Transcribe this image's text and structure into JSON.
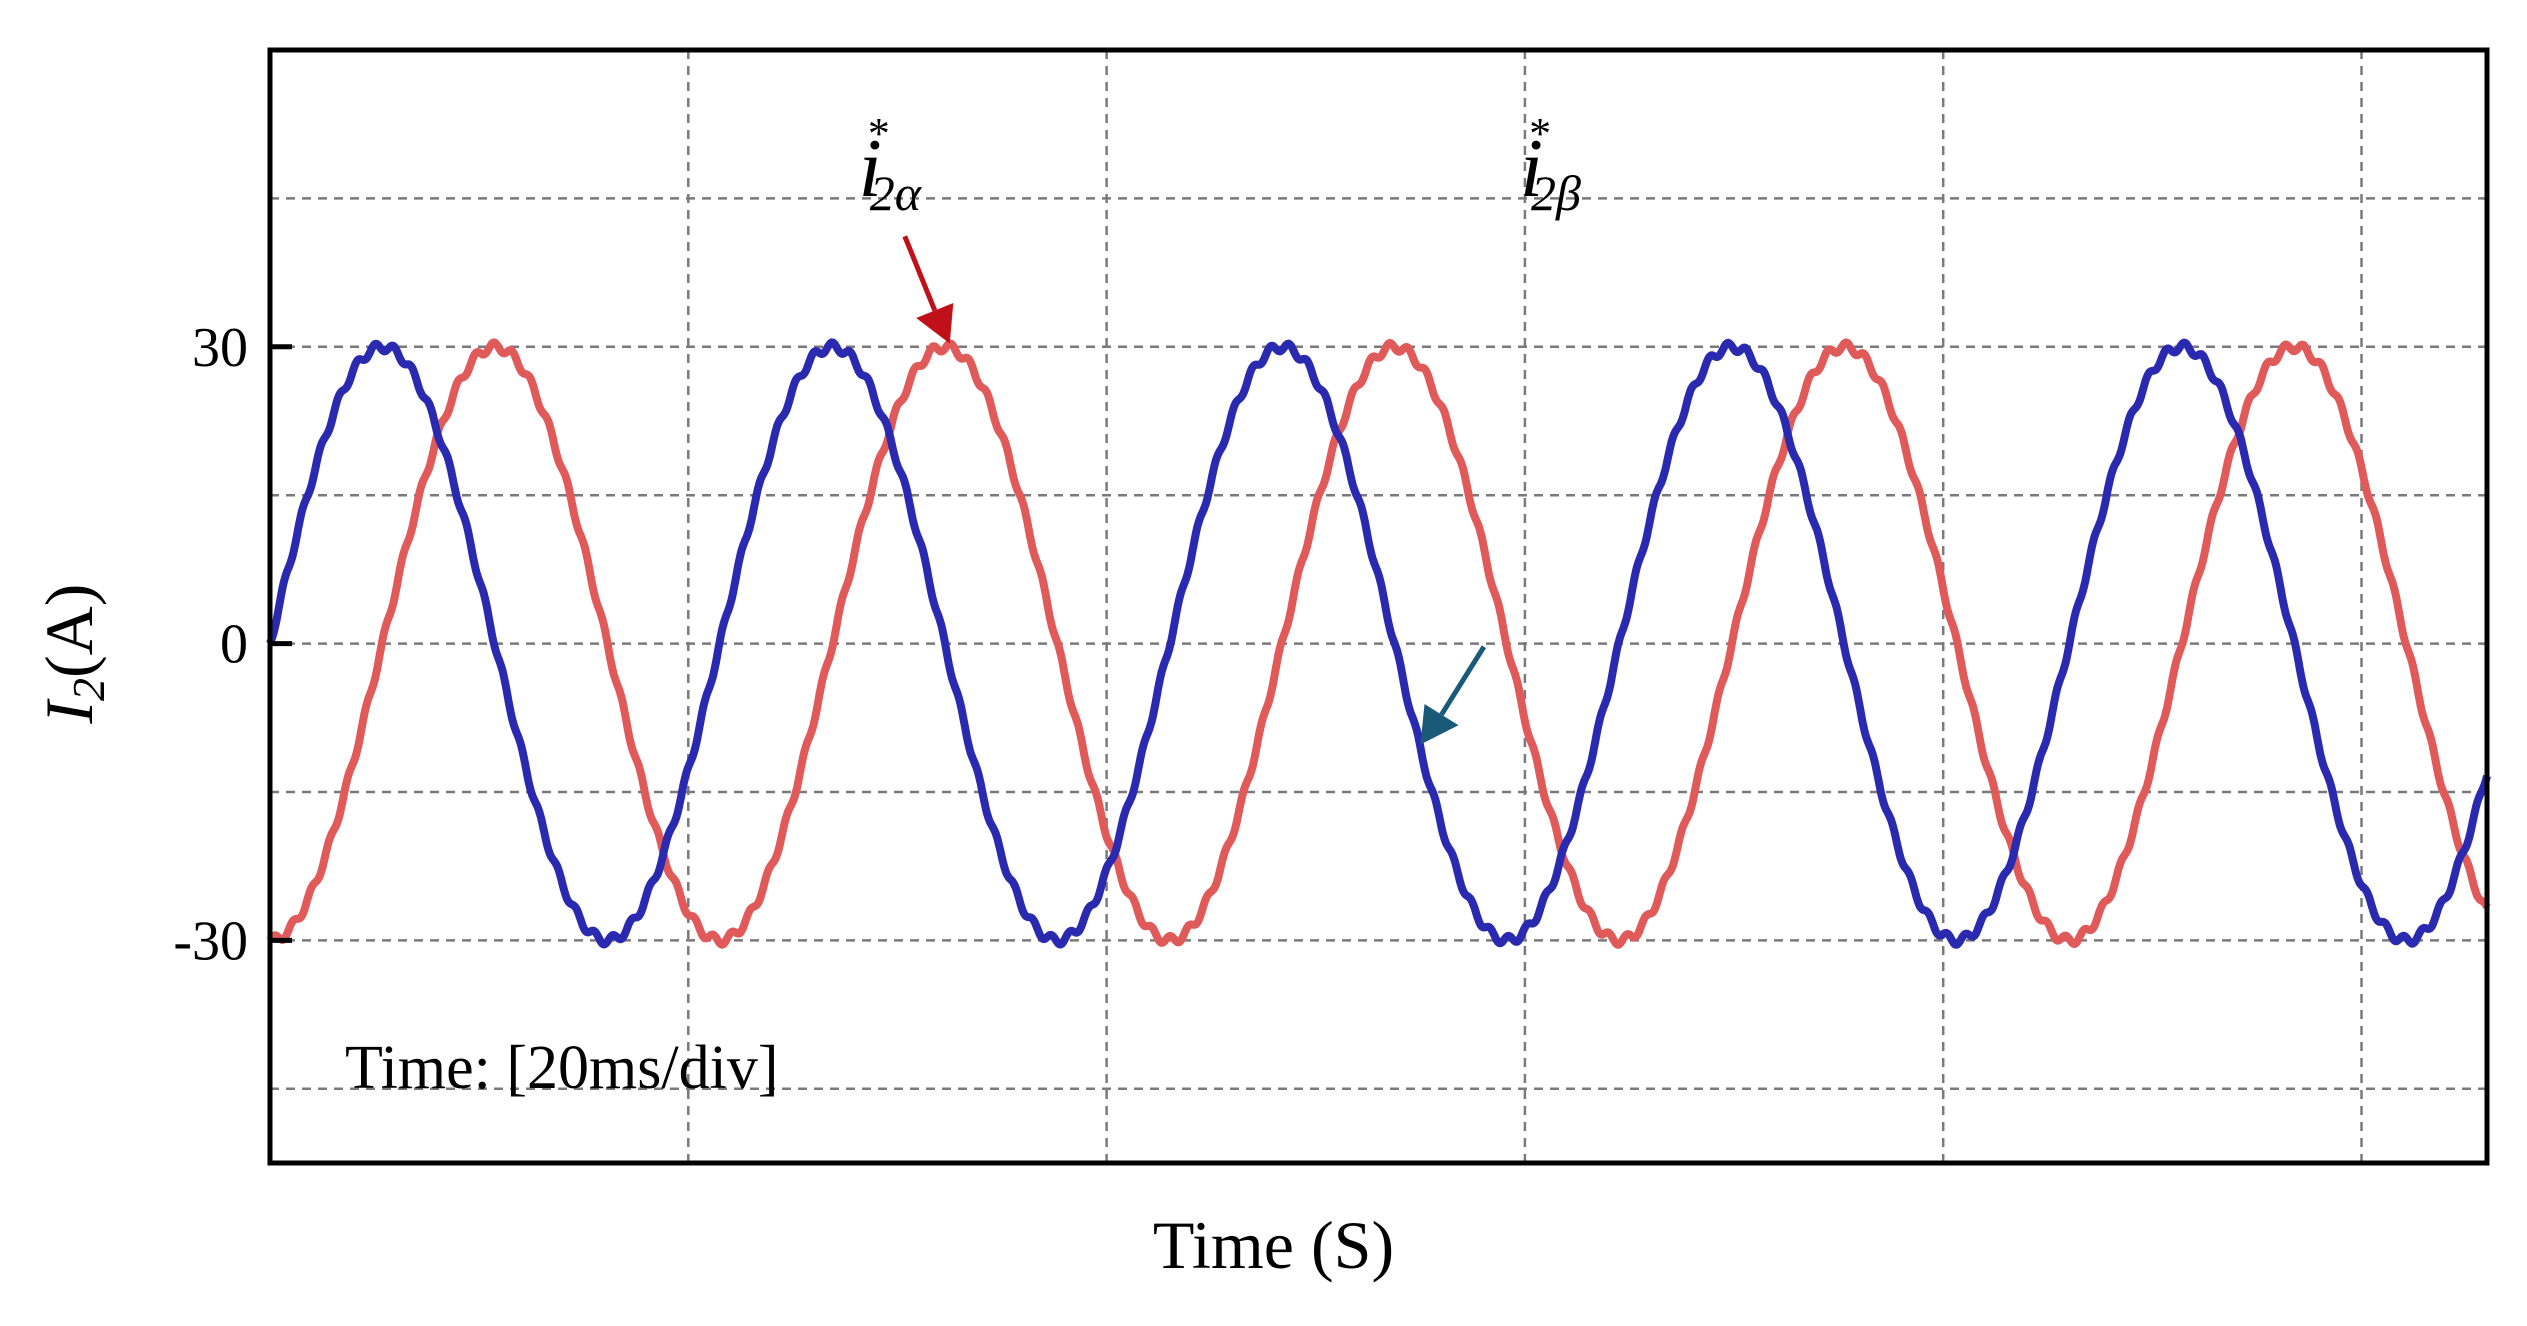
{
  "chart_data": {
    "type": "line",
    "xlabel": "Time (S)",
    "ylabel_main": "I",
    "ylabel_sub": "2",
    "ylabel_unit": "(A)",
    "annotation": "Time: [20ms/div]",
    "x_unit": "ms",
    "ms_per_div": 20,
    "xlim": [
      0,
      106
    ],
    "ylim": [
      -52.5,
      60
    ],
    "yticks": [
      30,
      0,
      -30
    ],
    "ytick_labels": [
      "30",
      "0",
      "-30"
    ],
    "grid": true,
    "grid_style": "dashed",
    "series": [
      {
        "name_main": "i",
        "name_sup": "*",
        "name_sub": "2α",
        "color": "#e05a5a",
        "amplitude": 30,
        "frequency_hz": 46.5,
        "phase_deg": -90,
        "label_x_ms": 32.5,
        "arrow_color": "#c0101a"
      },
      {
        "name_main": "i",
        "name_sup": "*",
        "name_sub": "2β",
        "color": "#2a2ab0",
        "amplitude": 30,
        "frequency_hz": 46.5,
        "phase_deg": 0,
        "label_x_ms": 55.0,
        "arrow_color": "#1a5a78"
      }
    ]
  }
}
